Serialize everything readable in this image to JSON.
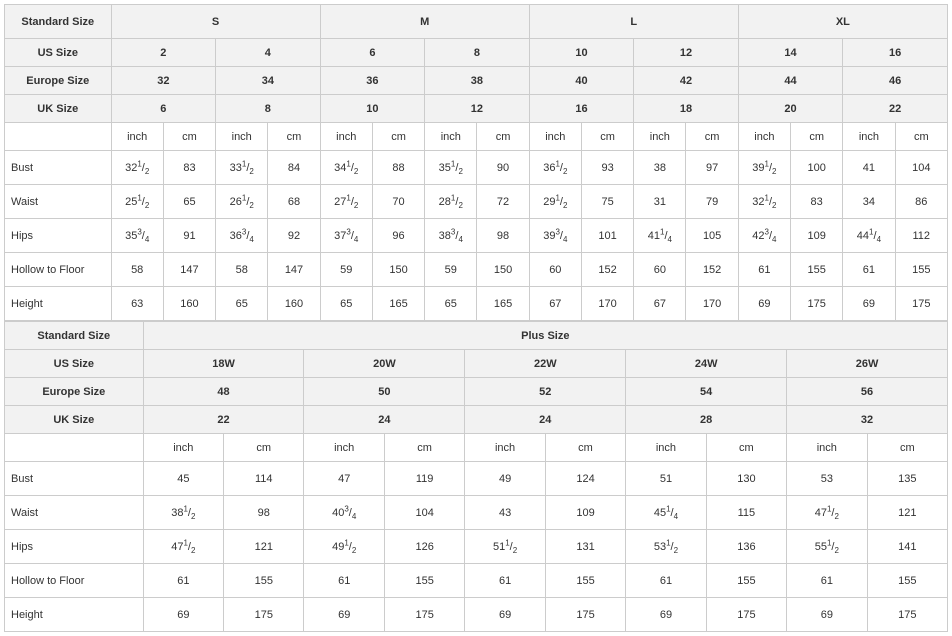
{
  "labels": {
    "standardSize": "Standard Size",
    "usSize": "US Size",
    "europeSize": "Europe Size",
    "ukSize": "UK Size",
    "plusSize": "Plus Size",
    "inch": "inch",
    "cm": "cm"
  },
  "colors": {
    "border": "#cccccc",
    "headerBg": "#f2f2f2",
    "bg": "#ffffff",
    "text": "#333333"
  },
  "standard": {
    "sizes": [
      "S",
      "M",
      "L",
      "XL"
    ],
    "us": [
      "2",
      "4",
      "6",
      "8",
      "10",
      "12",
      "14",
      "16"
    ],
    "europe": [
      "32",
      "34",
      "36",
      "38",
      "40",
      "42",
      "44",
      "46"
    ],
    "uk": [
      "6",
      "8",
      "10",
      "12",
      "16",
      "18",
      "20",
      "22"
    ],
    "cols16": 16,
    "rows": [
      {
        "label": "Bust",
        "cells": [
          {
            "f": "32 1/2"
          },
          {
            "v": "83"
          },
          {
            "f": "33 1/2"
          },
          {
            "v": "84"
          },
          {
            "f": "34 1/2"
          },
          {
            "v": "88"
          },
          {
            "f": "35 1/2"
          },
          {
            "v": "90"
          },
          {
            "f": "36 1/2"
          },
          {
            "v": "93"
          },
          {
            "v": "38"
          },
          {
            "v": "97"
          },
          {
            "f": "39 1/2"
          },
          {
            "v": "100"
          },
          {
            "v": "41"
          },
          {
            "v": "104"
          }
        ]
      },
      {
        "label": "Waist",
        "cells": [
          {
            "f": "25 1/2"
          },
          {
            "v": "65"
          },
          {
            "f": "26 1/2"
          },
          {
            "v": "68"
          },
          {
            "f": "27 1/2"
          },
          {
            "v": "70"
          },
          {
            "f": "28 1/2"
          },
          {
            "v": "72"
          },
          {
            "f": "29 1/2"
          },
          {
            "v": "75"
          },
          {
            "v": "31"
          },
          {
            "v": "79"
          },
          {
            "f": "32 1/2"
          },
          {
            "v": "83"
          },
          {
            "v": "34"
          },
          {
            "v": "86"
          }
        ]
      },
      {
        "label": "Hips",
        "cells": [
          {
            "f": "35 3/4"
          },
          {
            "v": "91"
          },
          {
            "f": "36 3/4"
          },
          {
            "v": "92"
          },
          {
            "f": "37 3/4"
          },
          {
            "v": "96"
          },
          {
            "f": "38 3/4"
          },
          {
            "v": "98"
          },
          {
            "f": "39 3/4"
          },
          {
            "v": "101"
          },
          {
            "f": "41 1/4"
          },
          {
            "v": "105"
          },
          {
            "f": "42 3/4"
          },
          {
            "v": "109"
          },
          {
            "f": "44 1/4"
          },
          {
            "v": "112"
          }
        ]
      },
      {
        "label": "Hollow to Floor",
        "cells": [
          {
            "v": "58"
          },
          {
            "v": "147"
          },
          {
            "v": "58"
          },
          {
            "v": "147"
          },
          {
            "v": "59"
          },
          {
            "v": "150"
          },
          {
            "v": "59"
          },
          {
            "v": "150"
          },
          {
            "v": "60"
          },
          {
            "v": "152"
          },
          {
            "v": "60"
          },
          {
            "v": "152"
          },
          {
            "v": "61"
          },
          {
            "v": "155"
          },
          {
            "v": "61"
          },
          {
            "v": "155"
          }
        ]
      },
      {
        "label": "Height",
        "cells": [
          {
            "v": "63"
          },
          {
            "v": "160"
          },
          {
            "v": "65"
          },
          {
            "v": "160"
          },
          {
            "v": "65"
          },
          {
            "v": "165"
          },
          {
            "v": "65"
          },
          {
            "v": "165"
          },
          {
            "v": "67"
          },
          {
            "v": "170"
          },
          {
            "v": "67"
          },
          {
            "v": "170"
          },
          {
            "v": "69"
          },
          {
            "v": "175"
          },
          {
            "v": "69"
          },
          {
            "v": "175"
          }
        ]
      }
    ]
  },
  "plus": {
    "us": [
      "18W",
      "20W",
      "22W",
      "24W",
      "26W"
    ],
    "europe": [
      "48",
      "50",
      "52",
      "54",
      "56"
    ],
    "uk": [
      "22",
      "24",
      "24",
      "28",
      "32"
    ],
    "cols10": 10,
    "rows": [
      {
        "label": "Bust",
        "cells": [
          {
            "v": "45"
          },
          {
            "v": "114"
          },
          {
            "v": "47"
          },
          {
            "v": "119"
          },
          {
            "v": "49"
          },
          {
            "v": "124"
          },
          {
            "v": "51"
          },
          {
            "v": "130"
          },
          {
            "v": "53"
          },
          {
            "v": "135"
          }
        ]
      },
      {
        "label": "Waist",
        "cells": [
          {
            "f": "38 1/2"
          },
          {
            "v": "98"
          },
          {
            "f": "40 3/4"
          },
          {
            "v": "104"
          },
          {
            "v": "43"
          },
          {
            "v": "109"
          },
          {
            "f": "45 1/4"
          },
          {
            "v": "115"
          },
          {
            "f": "47 1/2"
          },
          {
            "v": "121"
          }
        ]
      },
      {
        "label": "Hips",
        "cells": [
          {
            "f": "47 1/2"
          },
          {
            "v": "121"
          },
          {
            "f": "49 1/2"
          },
          {
            "v": "126"
          },
          {
            "f": "51 1/2"
          },
          {
            "v": "131"
          },
          {
            "f": "53 1/2"
          },
          {
            "v": "136"
          },
          {
            "f": "55 1/2"
          },
          {
            "v": "141"
          }
        ]
      },
      {
        "label": "Hollow to Floor",
        "cells": [
          {
            "v": "61"
          },
          {
            "v": "155"
          },
          {
            "v": "61"
          },
          {
            "v": "155"
          },
          {
            "v": "61"
          },
          {
            "v": "155"
          },
          {
            "v": "61"
          },
          {
            "v": "155"
          },
          {
            "v": "61"
          },
          {
            "v": "155"
          }
        ]
      },
      {
        "label": "Height",
        "cells": [
          {
            "v": "69"
          },
          {
            "v": "175"
          },
          {
            "v": "69"
          },
          {
            "v": "175"
          },
          {
            "v": "69"
          },
          {
            "v": "175"
          },
          {
            "v": "69"
          },
          {
            "v": "175"
          },
          {
            "v": "69"
          },
          {
            "v": "175"
          }
        ]
      }
    ]
  },
  "layout": {
    "std_label_w_pct": 11.3,
    "plus_label_w_pct": 14.7
  }
}
